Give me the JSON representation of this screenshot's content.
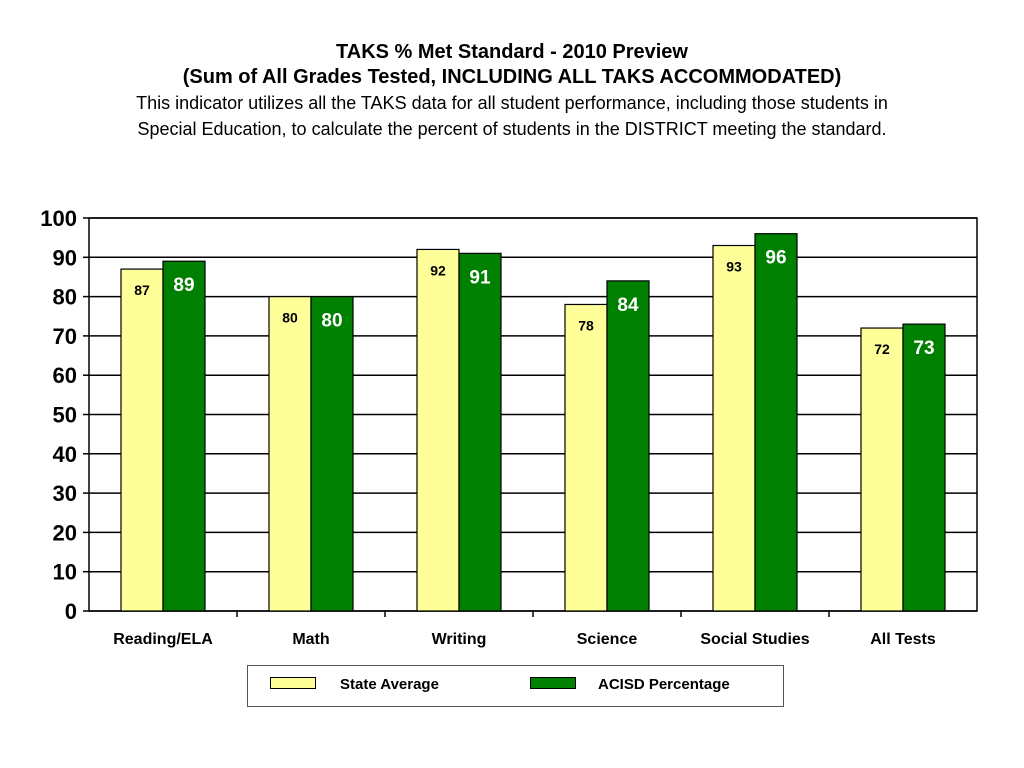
{
  "title": {
    "line1": "TAKS % Met Standard - 2010 Preview",
    "line2": "(Sum of All Grades Tested, INCLUDING ALL TAKS ACCOMMODATED)",
    "description": "This indicator utilizes all the TAKS data for all student performance, including those students in Special Education, to calculate the percent of students in the DISTRICT meeting the standard."
  },
  "chart_data": {
    "type": "bar",
    "categories": [
      "Reading/ELA",
      "Math",
      "Writing",
      "Science",
      "Social Studies",
      "All Tests"
    ],
    "series": [
      {
        "name": "State Average",
        "values": [
          87,
          80,
          92,
          78,
          93,
          72
        ],
        "color": "#ffff99"
      },
      {
        "name": "ACISD Percentage",
        "values": [
          89,
          80,
          91,
          84,
          96,
          73
        ],
        "color": "#008000"
      }
    ],
    "ylim": [
      0,
      100
    ],
    "yticks": [
      0,
      10,
      20,
      30,
      40,
      50,
      60,
      70,
      80,
      90,
      100
    ],
    "grid": true,
    "legend_position": "bottom"
  }
}
